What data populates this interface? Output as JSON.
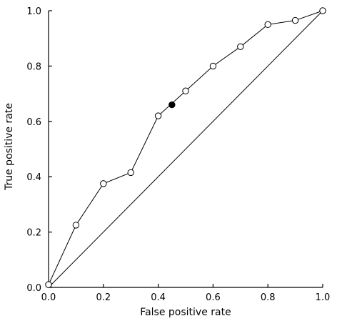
{
  "chart_data": {
    "type": "line",
    "xlabel": "False positive rate",
    "ylabel": "True positive rate",
    "xlim": [
      0.0,
      1.0
    ],
    "ylim": [
      0.0,
      1.0
    ],
    "x_ticks": [
      0.0,
      0.2,
      0.4,
      0.6,
      0.8,
      1.0
    ],
    "y_ticks": [
      0.0,
      0.2,
      0.4,
      0.6,
      0.8,
      1.0
    ],
    "x_tick_labels": [
      "0.0",
      "0.2",
      "0.4",
      "0.6",
      "0.8",
      "1.0"
    ],
    "y_tick_labels": [
      "0.0",
      "0.2",
      "0.4",
      "0.6",
      "0.8",
      "1.0"
    ],
    "grid": false,
    "series": [
      {
        "marker": "open-circle",
        "x": [
          0.0,
          0.1,
          0.2,
          0.3,
          0.4,
          0.5,
          0.6,
          0.7,
          0.8,
          0.9,
          1.0
        ],
        "y": [
          0.01,
          0.225,
          0.375,
          0.415,
          0.62,
          0.71,
          0.8,
          0.87,
          0.95,
          0.965,
          1.0
        ]
      },
      {
        "style": "reference-diagonal",
        "x": [
          0.0,
          1.0
        ],
        "y": [
          0.0,
          1.0
        ]
      }
    ],
    "highlight_point": {
      "marker": "filled-circle",
      "x": 0.45,
      "y": 0.66
    }
  }
}
